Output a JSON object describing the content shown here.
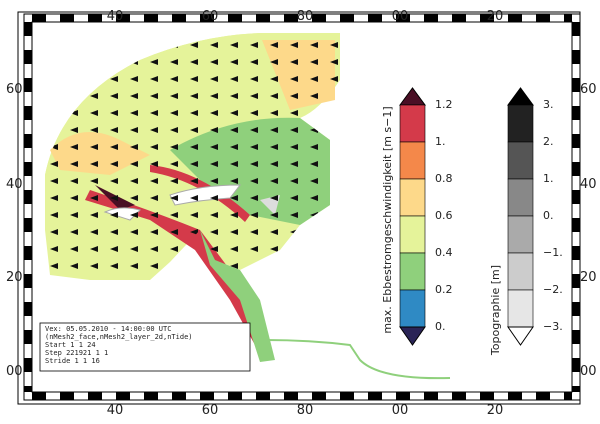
{
  "frame": {
    "x_labels": [
      "40",
      "60",
      "80",
      "00",
      "20"
    ],
    "y_labels": [
      "60",
      "40",
      "20",
      "00"
    ]
  },
  "colorbars": [
    {
      "label": "max. Ebbestromgeschwindigkeit [m s−1]",
      "ticks": [
        "1.2",
        "1.",
        "0.8",
        "0.6",
        "0.4",
        "0.2",
        "0."
      ],
      "colors": [
        "#4a0f25",
        "#d43a4a",
        "#f4884a",
        "#fdd98a",
        "#e5f39a",
        "#8fd07c",
        "#2f8ac4",
        "#2a2456"
      ]
    },
    {
      "label": "Topographie [m]",
      "ticks": [
        "3.",
        "2.",
        "1.",
        "0.",
        "−1.",
        "−2.",
        "−3."
      ],
      "colors": [
        "#000000",
        "#222222",
        "#555555",
        "#888888",
        "#aaaaaa",
        "#cccccc",
        "#e6e6e6",
        "#ffffff"
      ]
    }
  ],
  "info": [
    "Vex: 05.05.2010 - 14:00:00 UTC",
    "(nMesh2_face,nMesh2_layer_2d,nTide)",
    "Start      1      1     24",
    "Step  221921      1      1",
    "Stride     1      1     16"
  ]
}
